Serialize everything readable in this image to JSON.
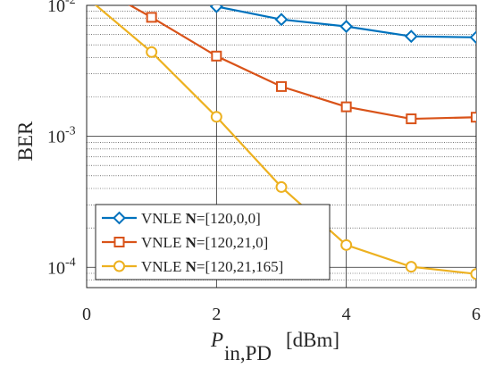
{
  "chart_data": {
    "type": "line",
    "xlabel_main": "P",
    "xlabel_sub": "in,PD",
    "xlabel_unit": "[dBm]",
    "ylabel": "BER",
    "xlim": [
      0,
      6
    ],
    "ylim": [
      7e-05,
      0.01
    ],
    "yscale": "log",
    "grid": "on",
    "x_ticks": [
      0,
      2,
      4,
      6
    ],
    "y_ticks": [
      {
        "value": 0.01,
        "base": "10",
        "exp": "-2"
      },
      {
        "value": 0.001,
        "base": "10",
        "exp": "-3"
      },
      {
        "value": 0.0001,
        "base": "10",
        "exp": "-4"
      }
    ],
    "legend_position": "bottom-left",
    "series": [
      {
        "legend_prefix": "VNLE ",
        "legend_bold": "N",
        "legend_suffix": "=[120,0,0]",
        "color": "#0072BD",
        "marker": "diamond",
        "x": [
          2,
          3,
          4,
          5,
          6
        ],
        "y": [
          0.0098,
          0.0078,
          0.0069,
          0.0058,
          0.0057
        ]
      },
      {
        "legend_prefix": "VNLE ",
        "legend_bold": "N",
        "legend_suffix": "=[120,21,0]",
        "color": "#D95319",
        "marker": "square",
        "x": [
          0.3,
          1,
          2,
          3,
          4,
          5,
          6
        ],
        "y": [
          0.0127,
          0.0081,
          0.0041,
          0.0024,
          0.00168,
          0.00136,
          0.0014
        ]
      },
      {
        "legend_prefix": "VNLE ",
        "legend_bold": "N",
        "legend_suffix": "=[120,21,165]",
        "color": "#EDB120",
        "marker": "circle",
        "x": [
          0,
          1,
          2,
          3,
          4,
          5,
          6
        ],
        "y": [
          0.0115,
          0.0044,
          0.00141,
          0.00041,
          0.000148,
          0.000101,
          8.9e-05
        ]
      }
    ]
  }
}
